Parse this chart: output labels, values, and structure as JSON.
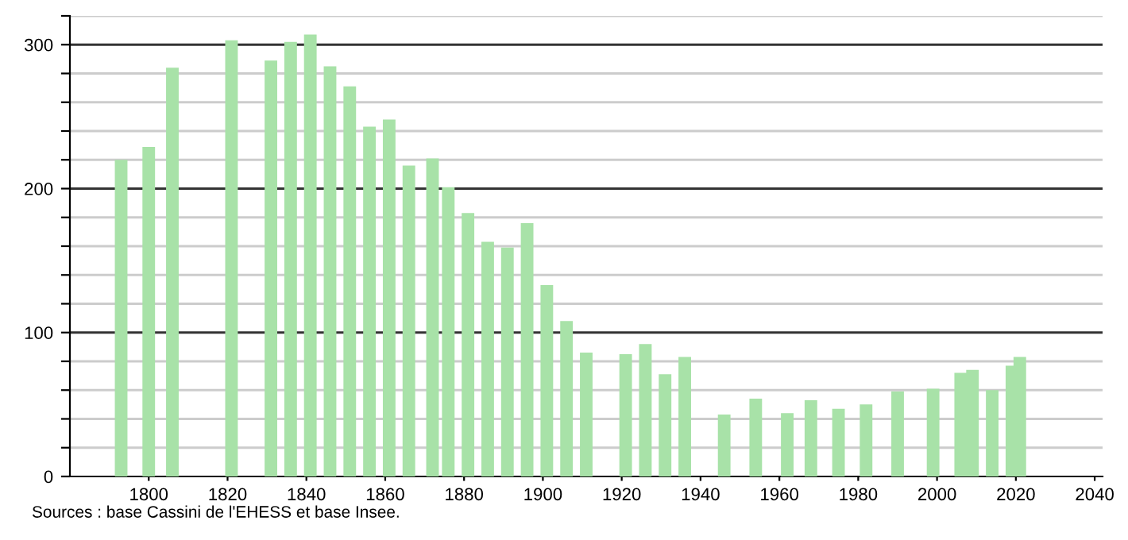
{
  "chart_data": {
    "type": "bar",
    "x": [
      1793,
      1800,
      1806,
      1821,
      1831,
      1836,
      1841,
      1846,
      1851,
      1856,
      1861,
      1866,
      1872,
      1876,
      1881,
      1886,
      1891,
      1896,
      1901,
      1906,
      1911,
      1921,
      1926,
      1931,
      1936,
      1946,
      1954,
      1962,
      1968,
      1975,
      1982,
      1990,
      1999,
      2006,
      2009,
      2014,
      2019,
      2021
    ],
    "values": [
      220,
      229,
      284,
      303,
      289,
      302,
      307,
      285,
      271,
      243,
      248,
      216,
      221,
      201,
      183,
      163,
      159,
      176,
      133,
      108,
      86,
      85,
      92,
      71,
      83,
      43,
      54,
      44,
      53,
      47,
      50,
      59,
      61,
      72,
      74,
      60,
      77,
      83
    ],
    "color": "#a8e2a8",
    "xlim": [
      1780,
      2042
    ],
    "xticks": [
      1800,
      1820,
      1840,
      1860,
      1880,
      1900,
      1920,
      1940,
      1960,
      1980,
      2000,
      2020,
      2040
    ],
    "ylim": [
      0,
      320
    ],
    "yticks": [
      0,
      {
        "value": 20,
        "label": null
      },
      {
        "value": 40,
        "label": null
      },
      {
        "value": 60,
        "label": null
      },
      {
        "value": 80,
        "label": null
      },
      100,
      {
        "value": 120,
        "label": null
      },
      {
        "value": 140,
        "label": null
      },
      {
        "value": 160,
        "label": null
      },
      {
        "value": 180,
        "label": null
      },
      200,
      {
        "value": 220,
        "label": null
      },
      {
        "value": 240,
        "label": null
      },
      {
        "value": 260,
        "label": null
      },
      {
        "value": 280,
        "label": null
      },
      300,
      {
        "value": 320,
        "label": null
      }
    ],
    "grid": "y",
    "annotations": [
      "Sources : base Cassini de l'EHESS et base Insee."
    ]
  }
}
